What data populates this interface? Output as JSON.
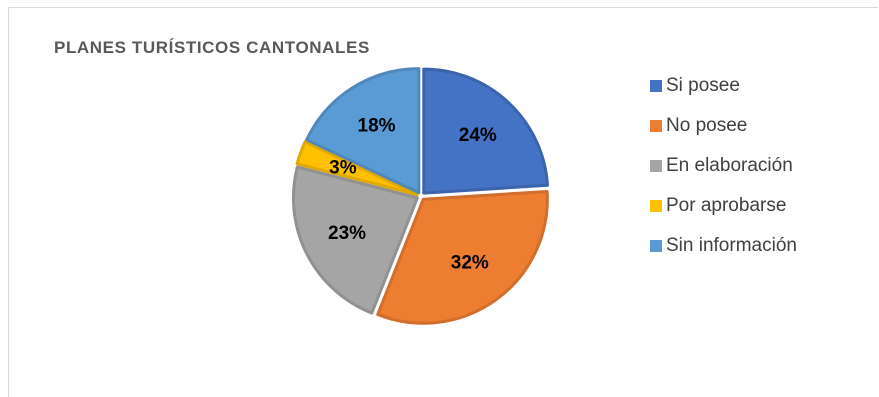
{
  "chart_data": {
    "type": "pie",
    "title": "PLANES TURÍSTICOS CANTONALES",
    "categories": [
      "Si posee",
      "No posee",
      "En elaboración",
      "Por aprobarse",
      "Sin información"
    ],
    "values": [
      24,
      32,
      23,
      3,
      18
    ],
    "labels": [
      "24%",
      "32%",
      "23%",
      "3%",
      "18%"
    ],
    "colors": [
      "#4472C4",
      "#ED7D31",
      "#A5A5A5",
      "#FFC000",
      "#5B9BD5"
    ],
    "legend_position": "right"
  }
}
